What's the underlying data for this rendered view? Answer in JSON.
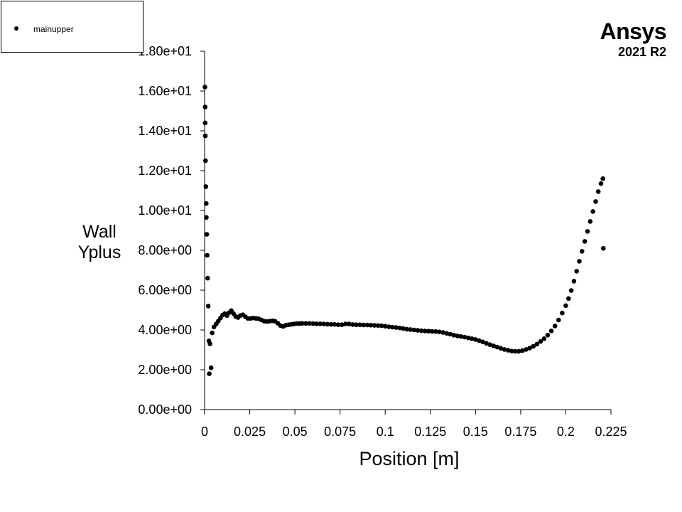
{
  "legend": {
    "entries": [
      "mainupper"
    ]
  },
  "brand": {
    "name": "Ansys",
    "version": "2021 R2"
  },
  "colors": {
    "series": "#000000",
    "axis": "#000000",
    "background": "#ffffff"
  },
  "chart_data": {
    "type": "scatter",
    "title": "",
    "xlabel": "Position [m]",
    "ylabel_lines": [
      "Wall",
      "Yplus"
    ],
    "xlim": [
      0,
      0.225
    ],
    "ylim": [
      0,
      18
    ],
    "x_ticks": [
      0,
      0.025,
      0.05,
      0.075,
      0.1,
      0.125,
      0.15,
      0.175,
      0.2,
      0.225
    ],
    "x_tick_labels": [
      "0",
      "0.025",
      "0.05",
      "0.075",
      "0.1",
      "0.125",
      "0.15",
      "0.175",
      "0.2",
      "0.225"
    ],
    "y_ticks": [
      0,
      2,
      4,
      6,
      8,
      10,
      12,
      14,
      16,
      18
    ],
    "y_tick_labels": [
      "0.00e+00",
      "2.00e+00",
      "4.00e+00",
      "6.00e+00",
      "8.00e+00",
      "1.00e+01",
      "1.20e+01",
      "1.40e+01",
      "1.60e+01",
      "1.80e+01"
    ],
    "grid": false,
    "legend_position": "top-left",
    "series": [
      {
        "name": "mainupper",
        "marker": "circle",
        "points": [
          [
            0.0002,
            16.2
          ],
          [
            0.0003,
            15.2
          ],
          [
            0.0003,
            14.4
          ],
          [
            0.0004,
            13.75
          ],
          [
            0.0005,
            12.5
          ],
          [
            0.0007,
            11.2
          ],
          [
            0.0009,
            10.35
          ],
          [
            0.001,
            9.65
          ],
          [
            0.0012,
            8.8
          ],
          [
            0.0014,
            7.75
          ],
          [
            0.0017,
            6.6
          ],
          [
            0.002,
            5.2
          ],
          [
            0.0024,
            3.45
          ],
          [
            0.003,
            3.3
          ],
          [
            0.0026,
            1.8
          ],
          [
            0.0036,
            2.1
          ],
          [
            0.0042,
            3.85
          ],
          [
            0.0052,
            4.15
          ],
          [
            0.0064,
            4.3
          ],
          [
            0.0076,
            4.45
          ],
          [
            0.0088,
            4.6
          ],
          [
            0.01,
            4.75
          ],
          [
            0.0112,
            4.82
          ],
          [
            0.0124,
            4.72
          ],
          [
            0.0136,
            4.87
          ],
          [
            0.0148,
            4.97
          ],
          [
            0.016,
            4.82
          ],
          [
            0.0172,
            4.68
          ],
          [
            0.0185,
            4.62
          ],
          [
            0.0198,
            4.72
          ],
          [
            0.0212,
            4.76
          ],
          [
            0.0226,
            4.66
          ],
          [
            0.024,
            4.58
          ],
          [
            0.0255,
            4.58
          ],
          [
            0.027,
            4.6
          ],
          [
            0.0285,
            4.58
          ],
          [
            0.03,
            4.56
          ],
          [
            0.0315,
            4.5
          ],
          [
            0.033,
            4.44
          ],
          [
            0.0345,
            4.42
          ],
          [
            0.036,
            4.44
          ],
          [
            0.0375,
            4.46
          ],
          [
            0.039,
            4.44
          ],
          [
            0.0405,
            4.34
          ],
          [
            0.042,
            4.22
          ],
          [
            0.0435,
            4.18
          ],
          [
            0.045,
            4.24
          ],
          [
            0.0465,
            4.26
          ],
          [
            0.048,
            4.28
          ],
          [
            0.0495,
            4.3
          ],
          [
            0.051,
            4.32
          ],
          [
            0.0525,
            4.32
          ],
          [
            0.054,
            4.33
          ],
          [
            0.056,
            4.33
          ],
          [
            0.058,
            4.33
          ],
          [
            0.06,
            4.32
          ],
          [
            0.062,
            4.31
          ],
          [
            0.064,
            4.31
          ],
          [
            0.066,
            4.3
          ],
          [
            0.068,
            4.29
          ],
          [
            0.07,
            4.28
          ],
          [
            0.072,
            4.28
          ],
          [
            0.074,
            4.26
          ],
          [
            0.076,
            4.26
          ],
          [
            0.078,
            4.3
          ],
          [
            0.08,
            4.3
          ],
          [
            0.082,
            4.27
          ],
          [
            0.084,
            4.26
          ],
          [
            0.086,
            4.26
          ],
          [
            0.088,
            4.25
          ],
          [
            0.09,
            4.25
          ],
          [
            0.092,
            4.24
          ],
          [
            0.094,
            4.23
          ],
          [
            0.096,
            4.22
          ],
          [
            0.098,
            4.21
          ],
          [
            0.1,
            4.19
          ],
          [
            0.102,
            4.16
          ],
          [
            0.104,
            4.14
          ],
          [
            0.106,
            4.12
          ],
          [
            0.108,
            4.1
          ],
          [
            0.11,
            4.07
          ],
          [
            0.112,
            4.04
          ],
          [
            0.114,
            4.02
          ],
          [
            0.116,
            4.0
          ],
          [
            0.118,
            3.98
          ],
          [
            0.12,
            3.96
          ],
          [
            0.122,
            3.95
          ],
          [
            0.124,
            3.94
          ],
          [
            0.126,
            3.93
          ],
          [
            0.128,
            3.92
          ],
          [
            0.13,
            3.9
          ],
          [
            0.132,
            3.87
          ],
          [
            0.134,
            3.83
          ],
          [
            0.136,
            3.79
          ],
          [
            0.138,
            3.74
          ],
          [
            0.14,
            3.7
          ],
          [
            0.142,
            3.67
          ],
          [
            0.144,
            3.64
          ],
          [
            0.146,
            3.6
          ],
          [
            0.148,
            3.56
          ],
          [
            0.15,
            3.52
          ],
          [
            0.152,
            3.46
          ],
          [
            0.154,
            3.4
          ],
          [
            0.156,
            3.33
          ],
          [
            0.158,
            3.26
          ],
          [
            0.16,
            3.2
          ],
          [
            0.162,
            3.14
          ],
          [
            0.164,
            3.08
          ],
          [
            0.166,
            3.02
          ],
          [
            0.168,
            2.98
          ],
          [
            0.17,
            2.94
          ],
          [
            0.172,
            2.93
          ],
          [
            0.174,
            2.93
          ],
          [
            0.176,
            2.96
          ],
          [
            0.178,
            3.02
          ],
          [
            0.18,
            3.09
          ],
          [
            0.182,
            3.18
          ],
          [
            0.184,
            3.29
          ],
          [
            0.186,
            3.42
          ],
          [
            0.188,
            3.56
          ],
          [
            0.19,
            3.74
          ],
          [
            0.192,
            3.95
          ],
          [
            0.194,
            4.2
          ],
          [
            0.196,
            4.5
          ],
          [
            0.198,
            4.85
          ],
          [
            0.2,
            5.22
          ],
          [
            0.2015,
            5.58
          ],
          [
            0.203,
            5.98
          ],
          [
            0.2045,
            6.45
          ],
          [
            0.206,
            6.95
          ],
          [
            0.2075,
            7.45
          ],
          [
            0.209,
            7.95
          ],
          [
            0.2105,
            8.45
          ],
          [
            0.212,
            8.95
          ],
          [
            0.2135,
            9.45
          ],
          [
            0.215,
            9.95
          ],
          [
            0.2165,
            10.45
          ],
          [
            0.218,
            10.95
          ],
          [
            0.2195,
            11.35
          ],
          [
            0.2205,
            11.6
          ],
          [
            0.2208,
            8.1
          ]
        ]
      }
    ]
  }
}
